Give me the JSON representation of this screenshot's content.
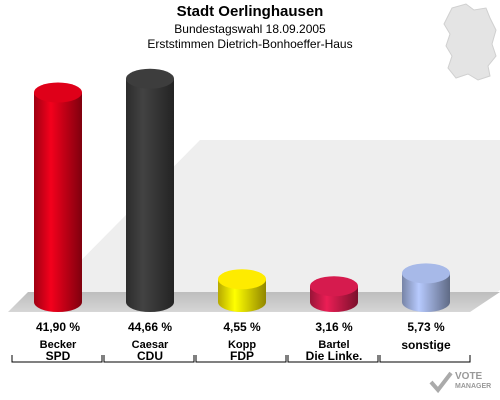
{
  "header": {
    "title": "Stadt Oerlinghausen",
    "subtitle": "Bundestagswahl 18.09.2005",
    "subtitle2": "Erststimmen Dietrich-Bonhoeffer-Haus"
  },
  "chart_data": {
    "type": "bar",
    "categories": [
      "SPD",
      "CDU",
      "FDP",
      "Die Linke.",
      "sonstige"
    ],
    "candidates": [
      "Becker",
      "Caesar",
      "Kopp",
      "Bartel",
      ""
    ],
    "values": [
      41.9,
      44.66,
      4.55,
      3.16,
      5.73
    ],
    "value_labels": [
      "41,90 %",
      "44,66 %",
      "4,55 %",
      "3,16 %",
      "5,73 %"
    ],
    "colors": [
      "#d40018",
      "#3a3a3a",
      "#f2e000",
      "#cc1a4a",
      "#9fb0dd"
    ],
    "ylim": [
      0,
      48
    ]
  },
  "logo": {
    "line1": "VOTE",
    "line2": "MANAGER"
  }
}
